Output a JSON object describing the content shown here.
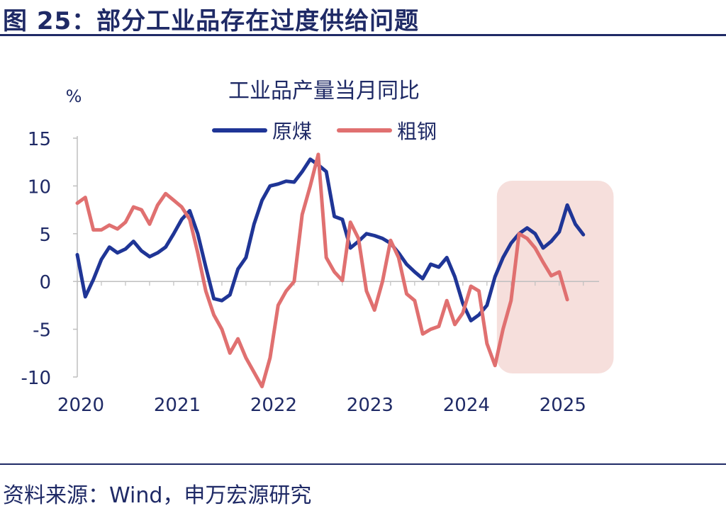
{
  "page": {
    "figure_title": "图 25：部分工业品存在过度供给问题",
    "source": "资料来源：Wind，申万宏源研究"
  },
  "colors": {
    "coal": "#1f3596",
    "steel": "#e07070",
    "highlight": "#f6dfdc",
    "axis": "#bfbfbf",
    "text": "#1f2a66"
  },
  "chart_data": {
    "type": "line",
    "title": "工业品产量当月同比",
    "ylabel": "%",
    "xlabel": "",
    "ylim": [
      -10,
      15
    ],
    "yticks": [
      "15",
      "10",
      "5",
      "0",
      "-5",
      "-10"
    ],
    "year_labels": [
      "2020",
      "2021",
      "2022",
      "2023",
      "2024",
      "2025"
    ],
    "x_start": "2020-01",
    "highlight_range": [
      "2024-07",
      "2025-06"
    ],
    "legend_position": "top-center",
    "series": [
      {
        "name": "原煤",
        "values": [
          2.8,
          -1.6,
          0.2,
          2.3,
          3.6,
          3.0,
          3.4,
          4.2,
          3.2,
          2.6,
          3.0,
          3.6,
          5.0,
          6.5,
          7.4,
          5.0,
          1.5,
          -1.8,
          -2.0,
          -1.4,
          1.3,
          2.5,
          6.0,
          8.5,
          10.0,
          10.2,
          10.5,
          10.4,
          11.5,
          12.8,
          12.2,
          11.5,
          6.8,
          6.5,
          3.5,
          4.2,
          5.0,
          4.8,
          4.5,
          4.0,
          3.0,
          1.8,
          1.0,
          0.3,
          1.8,
          1.5,
          2.5,
          0.5,
          -2.3,
          -4.1,
          -3.5,
          -2.5,
          0.5,
          2.5,
          4.0,
          5.0,
          5.6,
          5.0,
          3.5,
          4.2,
          5.2,
          8.0,
          6.0,
          4.9
        ],
        "color_key": "coal"
      },
      {
        "name": "粗钢",
        "values": [
          8.2,
          8.8,
          5.4,
          5.4,
          5.9,
          5.5,
          6.2,
          7.8,
          7.5,
          6.0,
          8.0,
          9.2,
          8.5,
          7.8,
          6.5,
          3.0,
          -1.0,
          -3.5,
          -5.0,
          -7.5,
          -6.0,
          -8.0,
          -9.5,
          -11.0,
          -8.0,
          -2.5,
          -1.0,
          0.0,
          7.0,
          10.0,
          13.3,
          2.5,
          1.0,
          0.1,
          6.2,
          4.5,
          -1.0,
          -3.0,
          0.0,
          4.3,
          2.5,
          -1.3,
          -2.0,
          -5.5,
          -5.0,
          -4.7,
          -2.0,
          -4.5,
          -3.3,
          -0.5,
          -1.0,
          -6.5,
          -8.8,
          -5.0,
          -2.0,
          5.0,
          4.5,
          3.5,
          2.0,
          0.6,
          1.0,
          -1.9
        ],
        "color_key": "steel"
      }
    ]
  }
}
